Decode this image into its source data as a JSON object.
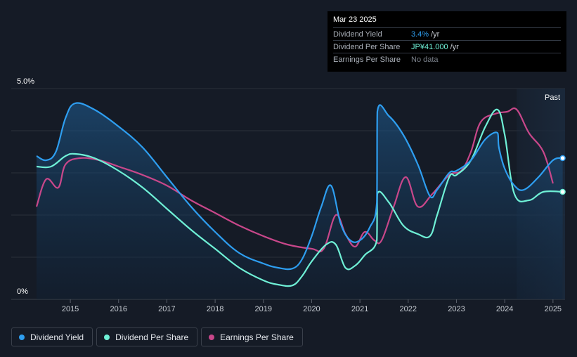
{
  "tooltip": {
    "date": "Mar 23 2025",
    "rows": [
      {
        "label": "Dividend Yield",
        "value": "3.4%",
        "unit": "/yr"
      },
      {
        "label": "Dividend Per Share",
        "value": "JP¥41.000",
        "unit": "/yr"
      },
      {
        "label": "Earnings Per Share",
        "value": "No data",
        "unit": ""
      }
    ]
  },
  "legend": [
    {
      "label": "Dividend Yield",
      "color": "#2e9ef0"
    },
    {
      "label": "Dividend Per Share",
      "color": "#6ff0d6"
    },
    {
      "label": "Earnings Per Share",
      "color": "#c8478a"
    }
  ],
  "colors": {
    "background": "#151b26",
    "grid": "#2a303b",
    "dividend_yield": "#2e9ef0",
    "dividend_per_share": "#6ff0d6",
    "earnings_per_share": "#c8478a",
    "past_region": "#1b2a3d"
  },
  "chart_data": {
    "type": "line",
    "past_label": "Past",
    "y_tick_labels": [
      "5.0%",
      "0%"
    ],
    "x_tick_labels": [
      "2015",
      "2016",
      "2017",
      "2018",
      "2019",
      "2020",
      "2021",
      "2022",
      "2023",
      "2024",
      "2025"
    ],
    "xlim": [
      2014.3,
      2025.25
    ],
    "ylim": [
      0,
      5.0
    ],
    "past_region_start": 2024.25,
    "series": [
      {
        "name": "Dividend Yield",
        "color": "#2e9ef0",
        "filled": true,
        "points": [
          [
            2014.3,
            3.4
          ],
          [
            2014.5,
            3.3
          ],
          [
            2014.7,
            3.5
          ],
          [
            2014.9,
            4.3
          ],
          [
            2015.1,
            4.65
          ],
          [
            2015.5,
            4.5
          ],
          [
            2016.0,
            4.1
          ],
          [
            2016.5,
            3.6
          ],
          [
            2017.0,
            2.9
          ],
          [
            2017.5,
            2.2
          ],
          [
            2018.0,
            1.6
          ],
          [
            2018.5,
            1.1
          ],
          [
            2019.0,
            0.85
          ],
          [
            2019.3,
            0.75
          ],
          [
            2019.6,
            0.73
          ],
          [
            2019.8,
            0.95
          ],
          [
            2020.0,
            1.5
          ],
          [
            2020.2,
            2.2
          ],
          [
            2020.4,
            2.7
          ],
          [
            2020.6,
            1.8
          ],
          [
            2020.8,
            1.4
          ],
          [
            2021.0,
            1.4
          ],
          [
            2021.2,
            1.7
          ],
          [
            2021.35,
            2.3
          ],
          [
            2021.36,
            4.45
          ],
          [
            2021.6,
            4.35
          ],
          [
            2021.9,
            3.9
          ],
          [
            2022.2,
            3.2
          ],
          [
            2022.45,
            2.45
          ],
          [
            2022.6,
            2.6
          ],
          [
            2022.85,
            3.0
          ],
          [
            2023.0,
            3.05
          ],
          [
            2023.3,
            3.3
          ],
          [
            2023.6,
            3.8
          ],
          [
            2023.85,
            3.95
          ],
          [
            2023.88,
            3.6
          ],
          [
            2024.0,
            3.1
          ],
          [
            2024.2,
            2.7
          ],
          [
            2024.4,
            2.6
          ],
          [
            2024.7,
            2.9
          ],
          [
            2025.0,
            3.3
          ],
          [
            2025.2,
            3.35
          ]
        ]
      },
      {
        "name": "Dividend Per Share",
        "color": "#6ff0d6",
        "filled": false,
        "points": [
          [
            2014.3,
            3.15
          ],
          [
            2014.6,
            3.15
          ],
          [
            2014.9,
            3.4
          ],
          [
            2015.1,
            3.45
          ],
          [
            2015.5,
            3.35
          ],
          [
            2016.0,
            3.05
          ],
          [
            2016.5,
            2.65
          ],
          [
            2017.0,
            2.15
          ],
          [
            2017.5,
            1.65
          ],
          [
            2018.0,
            1.2
          ],
          [
            2018.5,
            0.75
          ],
          [
            2019.0,
            0.45
          ],
          [
            2019.3,
            0.35
          ],
          [
            2019.6,
            0.33
          ],
          [
            2019.8,
            0.55
          ],
          [
            2020.0,
            0.9
          ],
          [
            2020.3,
            1.3
          ],
          [
            2020.5,
            1.3
          ],
          [
            2020.7,
            0.75
          ],
          [
            2020.9,
            0.8
          ],
          [
            2021.1,
            1.05
          ],
          [
            2021.35,
            1.4
          ],
          [
            2021.36,
            2.5
          ],
          [
            2021.6,
            2.3
          ],
          [
            2021.9,
            1.75
          ],
          [
            2022.2,
            1.55
          ],
          [
            2022.45,
            1.5
          ],
          [
            2022.6,
            2.0
          ],
          [
            2022.85,
            2.9
          ],
          [
            2023.0,
            2.95
          ],
          [
            2023.3,
            3.3
          ],
          [
            2023.6,
            4.1
          ],
          [
            2023.85,
            4.5
          ],
          [
            2024.0,
            3.9
          ],
          [
            2024.2,
            2.5
          ],
          [
            2024.5,
            2.35
          ],
          [
            2024.8,
            2.55
          ],
          [
            2025.2,
            2.55
          ]
        ]
      },
      {
        "name": "Earnings Per Share",
        "color": "#c8478a",
        "filled": false,
        "points": [
          [
            2014.3,
            2.2
          ],
          [
            2014.5,
            2.85
          ],
          [
            2014.75,
            2.65
          ],
          [
            2014.9,
            3.2
          ],
          [
            2015.2,
            3.35
          ],
          [
            2015.6,
            3.3
          ],
          [
            2016.0,
            3.15
          ],
          [
            2016.5,
            2.95
          ],
          [
            2017.0,
            2.7
          ],
          [
            2017.5,
            2.35
          ],
          [
            2018.0,
            2.05
          ],
          [
            2018.5,
            1.75
          ],
          [
            2019.0,
            1.5
          ],
          [
            2019.5,
            1.3
          ],
          [
            2020.0,
            1.2
          ],
          [
            2020.25,
            1.2
          ],
          [
            2020.5,
            2.0
          ],
          [
            2020.7,
            1.55
          ],
          [
            2020.9,
            1.25
          ],
          [
            2021.1,
            1.6
          ],
          [
            2021.3,
            1.4
          ],
          [
            2021.45,
            1.4
          ],
          [
            2021.7,
            2.2
          ],
          [
            2021.95,
            2.9
          ],
          [
            2022.2,
            2.2
          ],
          [
            2022.5,
            2.5
          ],
          [
            2022.85,
            2.95
          ],
          [
            2023.1,
            3.05
          ],
          [
            2023.3,
            3.5
          ],
          [
            2023.5,
            4.2
          ],
          [
            2023.8,
            4.4
          ],
          [
            2024.05,
            4.45
          ],
          [
            2024.25,
            4.5
          ],
          [
            2024.5,
            3.95
          ],
          [
            2024.8,
            3.5
          ],
          [
            2025.0,
            2.75
          ]
        ]
      }
    ]
  }
}
